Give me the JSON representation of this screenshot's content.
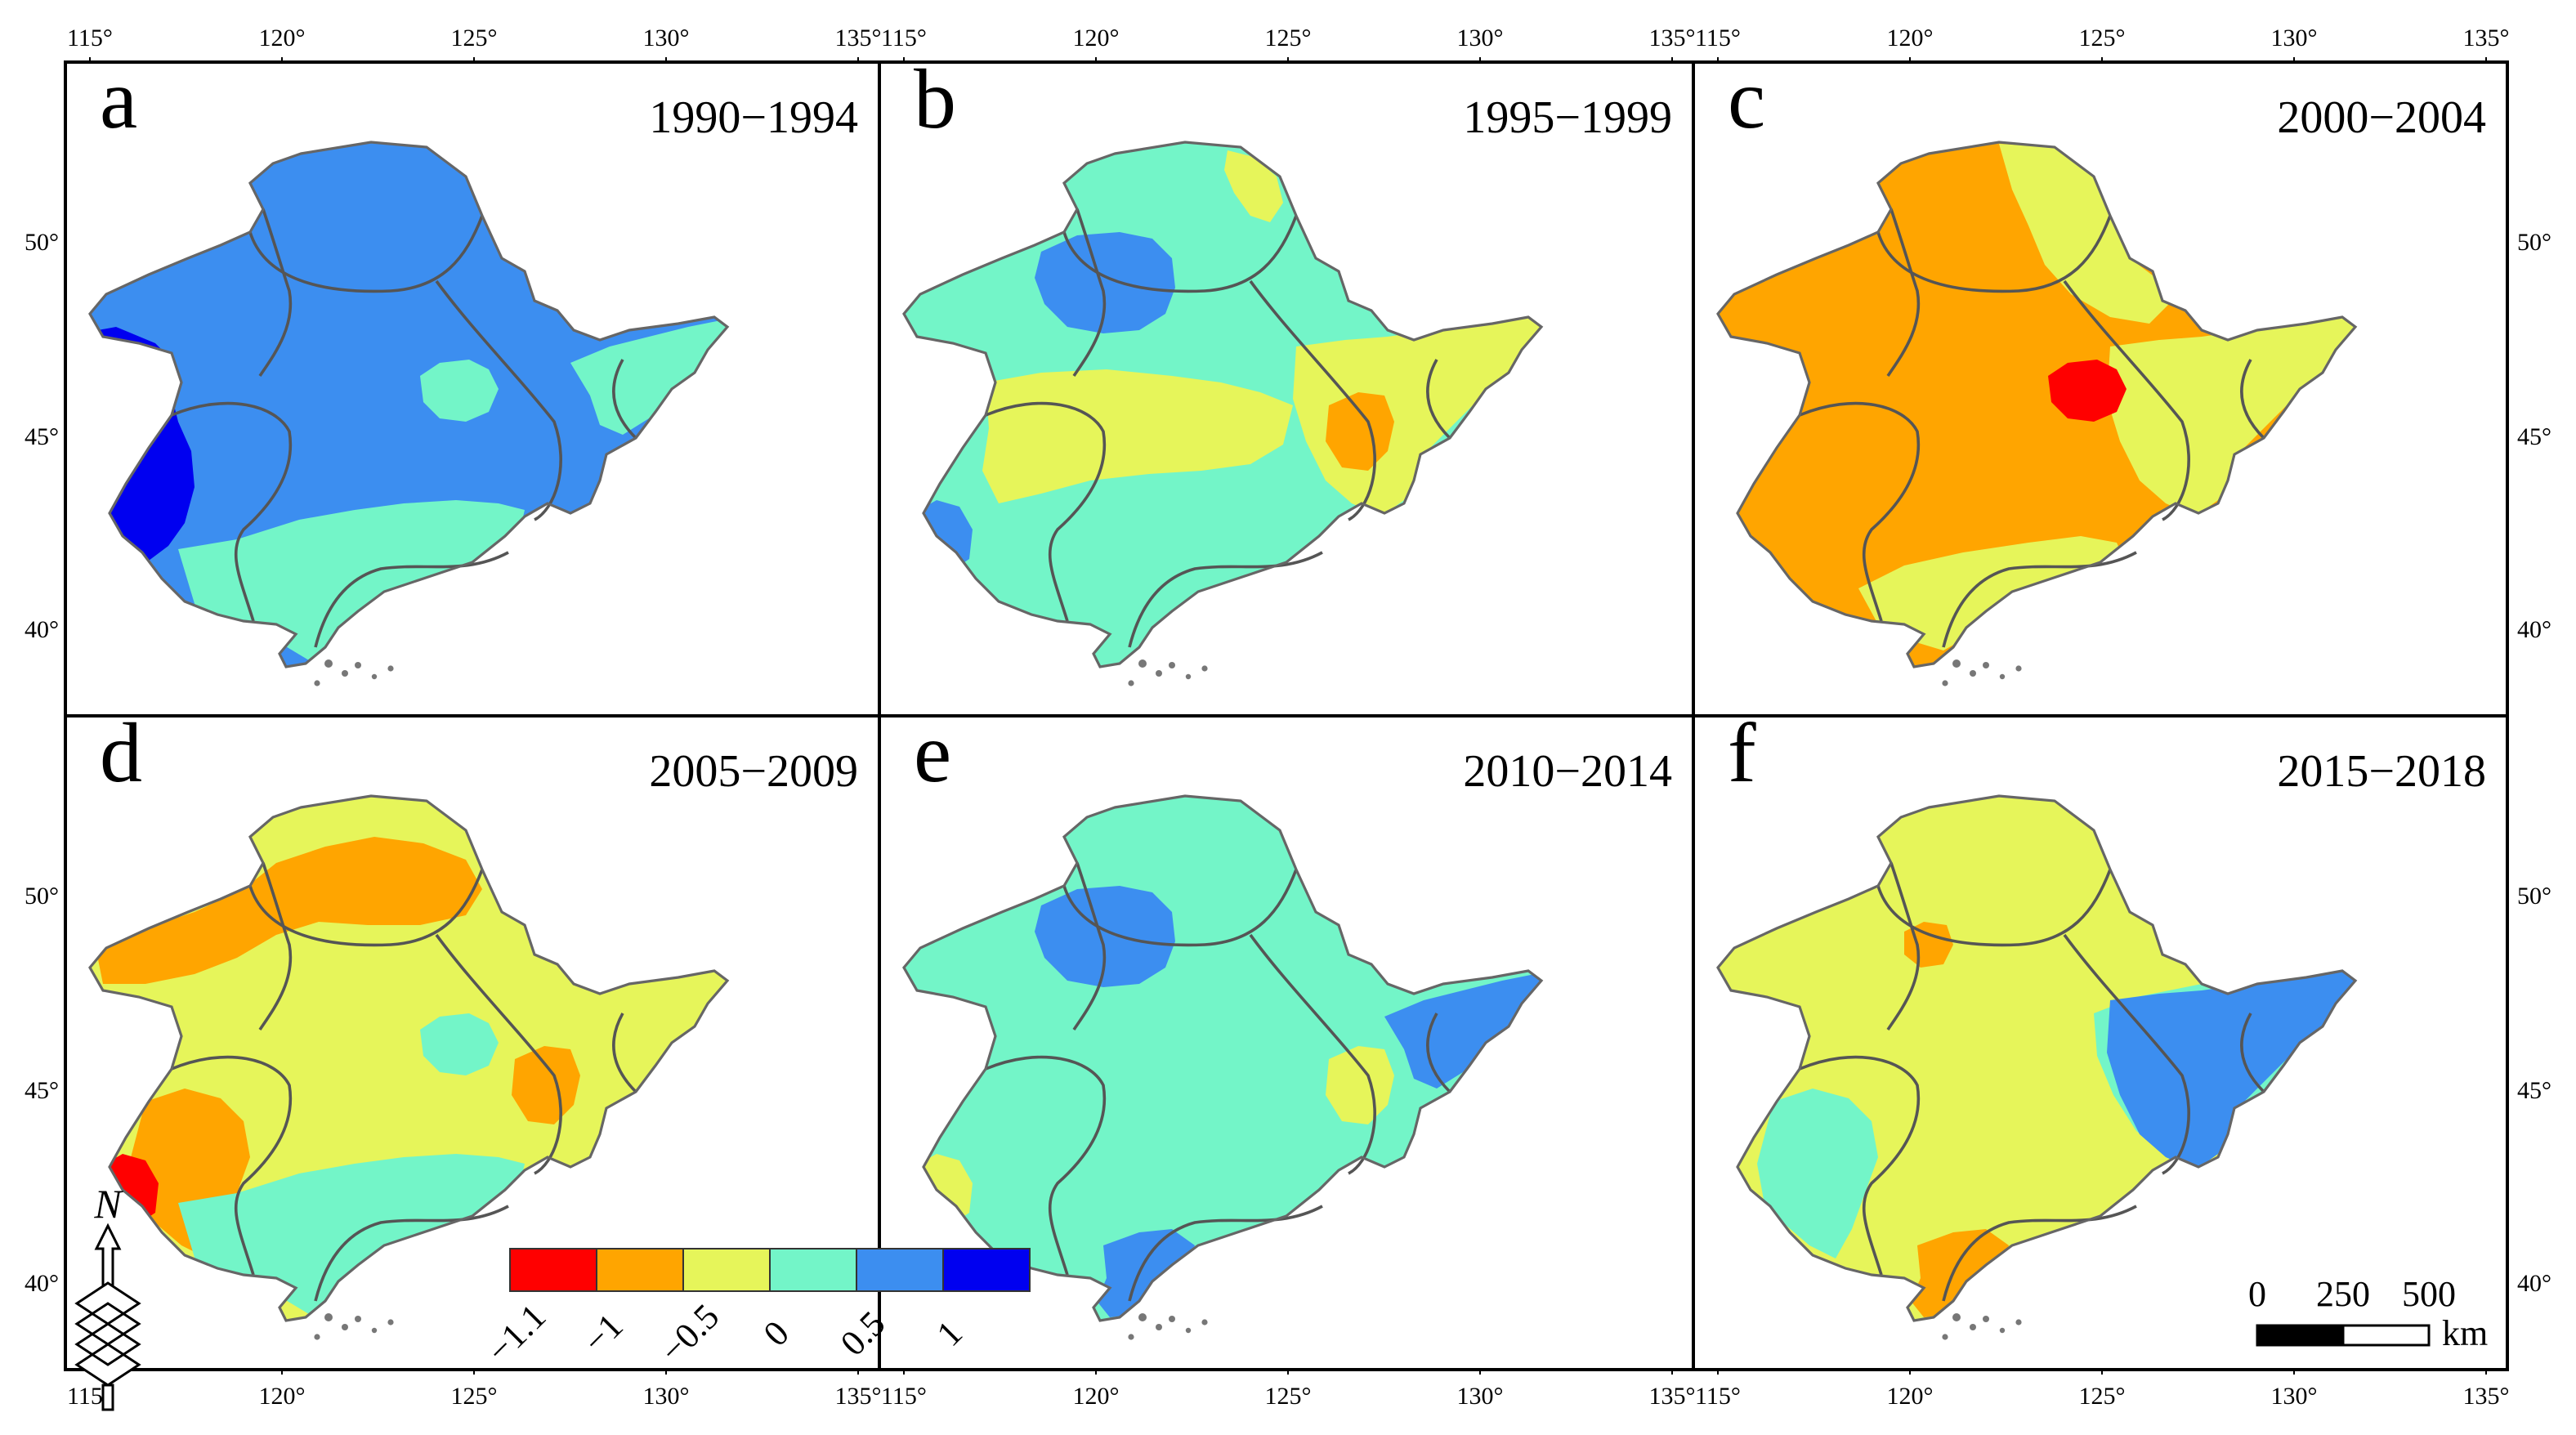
{
  "figure": {
    "colors": {
      "bin1": "#ff0000",
      "bin2": "#ffa500",
      "bin3": "#e6f55a",
      "bin4": "#73f5c8",
      "bin5": "#3c8ef0",
      "bin6": "#0000f0",
      "boundary": "#555555",
      "frame": "#000000"
    },
    "panels": [
      {
        "letter": "a",
        "period": "1990−1994",
        "base": 5,
        "patches": [
          {
            "cls": 6,
            "shape": "west-large"
          },
          {
            "cls": 4,
            "shape": "south"
          },
          {
            "cls": 4,
            "shape": "east-tail"
          },
          {
            "cls": 4,
            "shape": "center-spot"
          }
        ]
      },
      {
        "letter": "b",
        "period": "1995−1999",
        "base": 4,
        "patches": [
          {
            "cls": 3,
            "shape": "middle-band"
          },
          {
            "cls": 3,
            "shape": "east-block"
          },
          {
            "cls": 2,
            "shape": "east-spot"
          },
          {
            "cls": 5,
            "shape": "northwest"
          },
          {
            "cls": 5,
            "shape": "southwest-tip"
          },
          {
            "cls": 3,
            "shape": "north-tip"
          }
        ]
      },
      {
        "letter": "c",
        "period": "2000−2004",
        "base": 2,
        "patches": [
          {
            "cls": 3,
            "shape": "northeast"
          },
          {
            "cls": 3,
            "shape": "east-block"
          },
          {
            "cls": 3,
            "shape": "south-strip"
          },
          {
            "cls": 1,
            "shape": "center-spot"
          }
        ]
      },
      {
        "letter": "d",
        "period": "2005−2009",
        "base": 3,
        "patches": [
          {
            "cls": 2,
            "shape": "northwest-band"
          },
          {
            "cls": 2,
            "shape": "southwest-wedge"
          },
          {
            "cls": 2,
            "shape": "east-spot"
          },
          {
            "cls": 4,
            "shape": "center-spot"
          },
          {
            "cls": 4,
            "shape": "south"
          },
          {
            "cls": 1,
            "shape": "southwest-tip"
          }
        ]
      },
      {
        "letter": "e",
        "period": "2010−2014",
        "base": 4,
        "patches": [
          {
            "cls": 5,
            "shape": "northwest"
          },
          {
            "cls": 5,
            "shape": "east-tail"
          },
          {
            "cls": 5,
            "shape": "peninsula"
          },
          {
            "cls": 3,
            "shape": "southwest-tip"
          },
          {
            "cls": 3,
            "shape": "east-spot"
          }
        ]
      },
      {
        "letter": "f",
        "period": "2015−2018",
        "base": 3,
        "patches": [
          {
            "cls": 4,
            "shape": "southwest-wedge"
          },
          {
            "cls": 4,
            "shape": "east-ring"
          },
          {
            "cls": 5,
            "shape": "east-block"
          },
          {
            "cls": 2,
            "shape": "peninsula"
          },
          {
            "cls": 2,
            "shape": "northwest-speck"
          }
        ]
      }
    ],
    "lon_ticks": [
      "115°",
      "120°",
      "125°",
      "130°",
      "135°"
    ],
    "lat_ticks": [
      "50°",
      "45°",
      "40°"
    ],
    "legend": {
      "colors": [
        "#ff0000",
        "#ffa500",
        "#e6f55a",
        "#73f5c8",
        "#3c8ef0",
        "#0000f0"
      ],
      "labels": [
        "−1.1",
        "−1",
        "−0.5",
        "0",
        "0.5",
        "1"
      ]
    },
    "north_label": "N",
    "scale_bar": {
      "labels": [
        "0",
        "250",
        "500"
      ],
      "unit": "km"
    }
  }
}
